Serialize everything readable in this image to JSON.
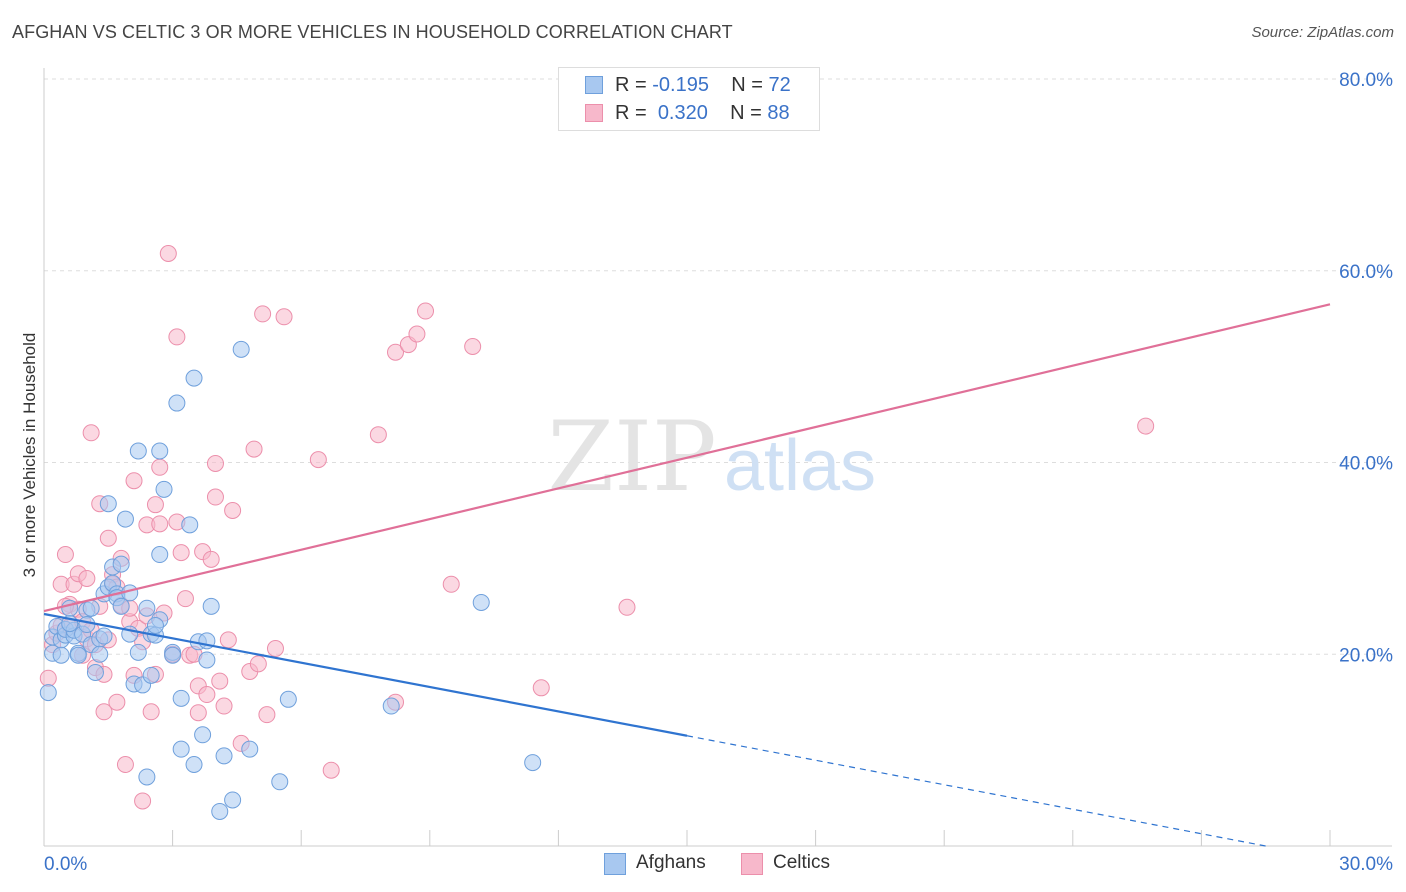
{
  "header": {
    "title": "AFGHAN VS CELTIC 3 OR MORE VEHICLES IN HOUSEHOLD CORRELATION CHART",
    "source": "Source: ZipAtlas.com"
  },
  "watermark": {
    "zip": "ZIP",
    "atlas": "atlas"
  },
  "legend": {
    "afghans": {
      "r_label": "R = ",
      "r_value": "-0.195",
      "n_label": "N = ",
      "n_value": "72"
    },
    "celtics": {
      "r_label": "R = ",
      "r_value": "0.320",
      "n_label": "N = ",
      "n_value": "88"
    }
  },
  "bottom_legend": {
    "afghans": "Afghans",
    "celtics": "Celtics"
  },
  "colors": {
    "afghan_fill": "#a8c8f0",
    "afghan_stroke": "#6fa0dc",
    "afghan_line": "#2f74d0",
    "celtic_fill": "#f7b8cb",
    "celtic_stroke": "#ec8fab",
    "celtic_line": "#e07098",
    "tick_text": "#3a72c8",
    "grid": "#dddddd"
  },
  "chart_data": {
    "type": "scatter",
    "title": "AFGHAN VS CELTIC 3 OR MORE VEHICLES IN HOUSEHOLD CORRELATION CHART",
    "xlabel": "",
    "ylabel": "3 or more Vehicles in Household",
    "xlim": [
      0,
      30
    ],
    "ylim": [
      0,
      80
    ],
    "x_tick_labels": [
      "0.0%",
      "30.0%"
    ],
    "y_ticks": [
      20,
      40,
      60,
      80
    ],
    "y_tick_labels": [
      "20.0%",
      "40.0%",
      "60.0%",
      "80.0%"
    ],
    "grid": true,
    "series": [
      {
        "name": "Afghans",
        "r": -0.195,
        "n": 72,
        "trend": {
          "x0": 0,
          "y0": 24.2,
          "x1": 15,
          "y1": 11.5,
          "dashed_to_x": 28.5,
          "dashed_to_y": 0
        },
        "points": [
          [
            0.1,
            16.0
          ],
          [
            0.2,
            20.1
          ],
          [
            0.2,
            21.8
          ],
          [
            0.3,
            22.9
          ],
          [
            0.4,
            21.5
          ],
          [
            0.4,
            19.9
          ],
          [
            0.5,
            22.0
          ],
          [
            0.5,
            22.6
          ],
          [
            0.6,
            24.8
          ],
          [
            0.7,
            21.9
          ],
          [
            0.7,
            22.5
          ],
          [
            0.8,
            20.1
          ],
          [
            0.8,
            19.9
          ],
          [
            0.9,
            22.1
          ],
          [
            1.0,
            24.6
          ],
          [
            1.0,
            23.1
          ],
          [
            1.1,
            24.8
          ],
          [
            1.1,
            21.0
          ],
          [
            1.2,
            18.1
          ],
          [
            1.3,
            21.6
          ],
          [
            1.3,
            20.0
          ],
          [
            1.4,
            26.3
          ],
          [
            1.4,
            21.9
          ],
          [
            1.5,
            35.7
          ],
          [
            1.5,
            27.0
          ],
          [
            1.6,
            29.1
          ],
          [
            1.6,
            27.4
          ],
          [
            1.7,
            26.3
          ],
          [
            1.7,
            25.9
          ],
          [
            1.8,
            29.4
          ],
          [
            1.9,
            34.1
          ],
          [
            2.0,
            22.1
          ],
          [
            2.0,
            26.4
          ],
          [
            2.1,
            16.9
          ],
          [
            2.2,
            41.2
          ],
          [
            2.2,
            20.2
          ],
          [
            2.3,
            16.8
          ],
          [
            2.4,
            7.2
          ],
          [
            2.4,
            24.8
          ],
          [
            2.5,
            17.8
          ],
          [
            2.5,
            22.1
          ],
          [
            2.6,
            22.0
          ],
          [
            2.7,
            23.6
          ],
          [
            2.7,
            30.4
          ],
          [
            2.7,
            41.2
          ],
          [
            2.8,
            37.2
          ],
          [
            3.0,
            20.2
          ],
          [
            3.0,
            19.9
          ],
          [
            3.1,
            46.2
          ],
          [
            3.2,
            15.4
          ],
          [
            3.2,
            10.1
          ],
          [
            3.4,
            33.5
          ],
          [
            3.5,
            8.5
          ],
          [
            3.5,
            48.8
          ],
          [
            3.6,
            21.3
          ],
          [
            3.7,
            11.6
          ],
          [
            3.8,
            21.4
          ],
          [
            3.8,
            19.4
          ],
          [
            3.9,
            25.0
          ],
          [
            4.1,
            3.6
          ],
          [
            4.2,
            9.4
          ],
          [
            4.4,
            4.8
          ],
          [
            4.6,
            51.8
          ],
          [
            4.8,
            10.1
          ],
          [
            5.5,
            6.7
          ],
          [
            5.7,
            15.3
          ],
          [
            8.1,
            14.6
          ],
          [
            10.2,
            25.4
          ],
          [
            11.4,
            8.7
          ],
          [
            0.6,
            23.2
          ],
          [
            1.8,
            25.0
          ],
          [
            2.6,
            23.0
          ]
        ]
      },
      {
        "name": "Celtics",
        "r": 0.32,
        "n": 88,
        "trend": {
          "x0": 0,
          "y0": 24.5,
          "x1": 30,
          "y1": 56.5
        },
        "points": [
          [
            0.1,
            17.5
          ],
          [
            0.2,
            21.0
          ],
          [
            0.3,
            22.2
          ],
          [
            0.4,
            23.0
          ],
          [
            0.4,
            27.3
          ],
          [
            0.5,
            30.4
          ],
          [
            0.6,
            22.9
          ],
          [
            0.6,
            25.2
          ],
          [
            0.7,
            27.3
          ],
          [
            0.8,
            28.4
          ],
          [
            0.8,
            24.7
          ],
          [
            0.9,
            23.4
          ],
          [
            0.9,
            19.9
          ],
          [
            1.0,
            21.6
          ],
          [
            1.0,
            27.9
          ],
          [
            1.1,
            43.1
          ],
          [
            1.1,
            22.5
          ],
          [
            1.2,
            21.0
          ],
          [
            1.2,
            18.6
          ],
          [
            1.3,
            25.0
          ],
          [
            1.3,
            35.7
          ],
          [
            1.4,
            14.0
          ],
          [
            1.4,
            17.9
          ],
          [
            1.5,
            21.5
          ],
          [
            1.5,
            32.1
          ],
          [
            1.6,
            27.3
          ],
          [
            1.6,
            28.3
          ],
          [
            1.7,
            15.0
          ],
          [
            1.8,
            30.0
          ],
          [
            1.8,
            25.1
          ],
          [
            1.9,
            8.5
          ],
          [
            2.0,
            23.4
          ],
          [
            2.0,
            24.8
          ],
          [
            2.1,
            38.1
          ],
          [
            2.1,
            17.8
          ],
          [
            2.2,
            22.7
          ],
          [
            2.3,
            4.7
          ],
          [
            2.4,
            24.0
          ],
          [
            2.4,
            33.5
          ],
          [
            2.5,
            14.0
          ],
          [
            2.6,
            35.6
          ],
          [
            2.6,
            17.9
          ],
          [
            2.7,
            33.6
          ],
          [
            2.7,
            39.5
          ],
          [
            2.8,
            24.3
          ],
          [
            2.9,
            61.8
          ],
          [
            3.0,
            20.0
          ],
          [
            3.1,
            33.8
          ],
          [
            3.1,
            53.1
          ],
          [
            3.2,
            30.6
          ],
          [
            3.3,
            25.8
          ],
          [
            3.4,
            19.9
          ],
          [
            3.5,
            20.0
          ],
          [
            3.6,
            13.9
          ],
          [
            3.6,
            16.7
          ],
          [
            3.7,
            30.7
          ],
          [
            3.8,
            15.8
          ],
          [
            3.9,
            29.9
          ],
          [
            4.0,
            36.4
          ],
          [
            4.0,
            39.9
          ],
          [
            4.1,
            17.2
          ],
          [
            4.2,
            14.6
          ],
          [
            4.3,
            21.5
          ],
          [
            4.4,
            35.0
          ],
          [
            4.6,
            10.7
          ],
          [
            4.8,
            18.2
          ],
          [
            4.9,
            41.4
          ],
          [
            5.0,
            19.0
          ],
          [
            5.1,
            55.5
          ],
          [
            5.2,
            13.7
          ],
          [
            5.4,
            20.6
          ],
          [
            5.6,
            55.2
          ],
          [
            6.4,
            40.3
          ],
          [
            6.7,
            7.9
          ],
          [
            7.8,
            42.9
          ],
          [
            8.2,
            15.0
          ],
          [
            8.2,
            51.5
          ],
          [
            8.5,
            52.3
          ],
          [
            8.7,
            53.4
          ],
          [
            8.9,
            55.8
          ],
          [
            9.5,
            27.3
          ],
          [
            10.0,
            52.1
          ],
          [
            11.6,
            16.5
          ],
          [
            13.6,
            24.9
          ],
          [
            25.7,
            43.8
          ],
          [
            0.5,
            25.0
          ],
          [
            1.7,
            27.0
          ],
          [
            2.3,
            21.3
          ]
        ]
      }
    ]
  }
}
